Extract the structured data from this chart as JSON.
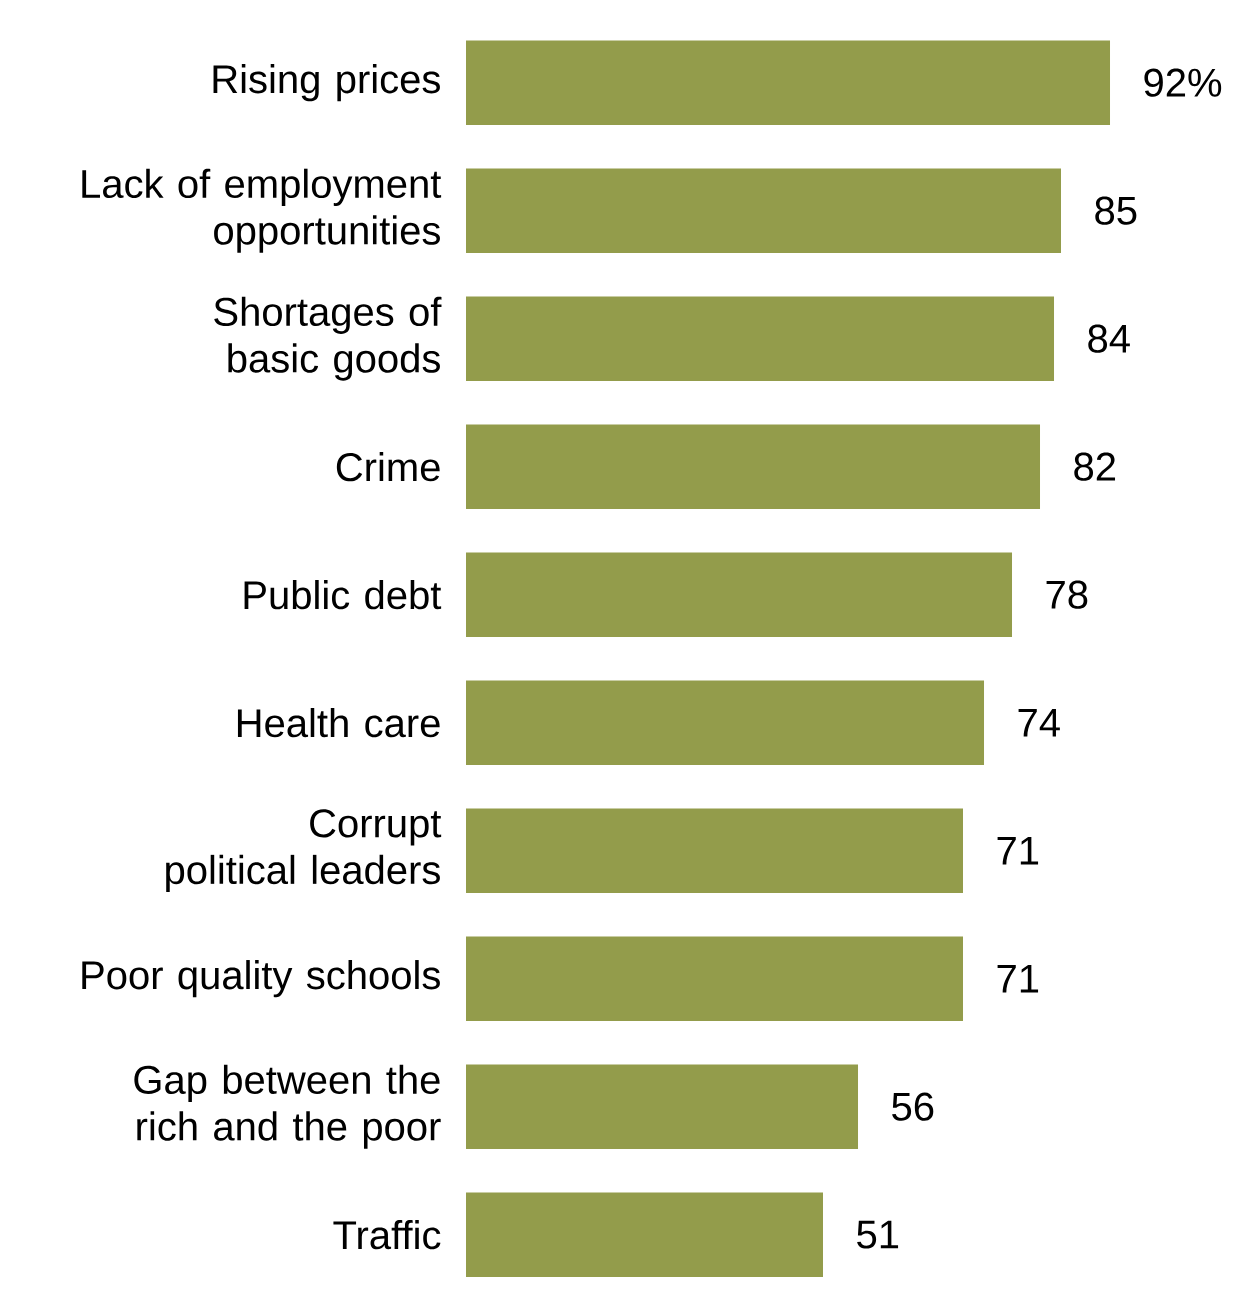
{
  "chart_data": {
    "type": "bar",
    "orientation": "horizontal",
    "categories": [
      "Rising prices",
      "Lack of employment opportunities",
      "Shortages of basic goods",
      "Crime",
      "Public debt",
      "Health care",
      "Corrupt political leaders",
      "Poor quality schools",
      "Gap between the rich and the poor",
      "Traffic"
    ],
    "values": [
      92,
      85,
      84,
      82,
      78,
      74,
      71,
      71,
      56,
      51
    ],
    "value_labels": [
      "92%",
      "85",
      "84",
      "82",
      "78",
      "74",
      "71",
      "71",
      "56",
      "51"
    ],
    "color": "#939c4b"
  }
}
